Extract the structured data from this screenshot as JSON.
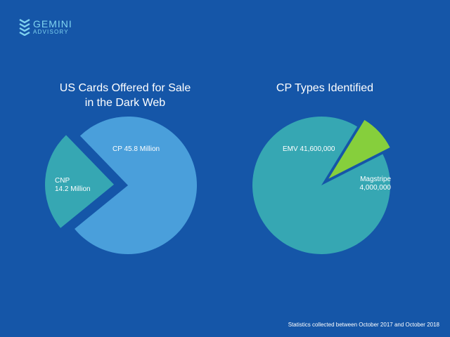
{
  "logo": {
    "line1": "GEMINI",
    "line2": "ADVISORY",
    "icon": "chevron-stack-icon",
    "color": "#7fd3f0"
  },
  "footnote": "Statistics collected between October 2017 and October 2018",
  "colors": {
    "background": "#1556a8",
    "cp": "#4a9fdb",
    "cnp": "#36a7b3",
    "emv": "#36a7b3",
    "magstripe": "#86cf3c"
  },
  "chart_data": [
    {
      "type": "pie",
      "title_lines": [
        "US Cards Offered for Sale",
        "in the Dark Web"
      ],
      "slices": [
        {
          "label_lines": [
            "CP 45.8 Million"
          ],
          "value": 45.8,
          "color": "#4a9fdb",
          "exploded": false
        },
        {
          "label_lines": [
            "CNP",
            "14.2 Million"
          ],
          "value": 14.2,
          "color": "#36a7b3",
          "exploded": true
        }
      ]
    },
    {
      "type": "pie",
      "title_lines": [
        "CP Types Identified"
      ],
      "slices": [
        {
          "label_lines": [
            "EMV 41,600,000"
          ],
          "value": 41600000,
          "color": "#36a7b3",
          "exploded": false
        },
        {
          "label_lines": [
            "Magstripe",
            "4,000,000"
          ],
          "value": 4000000,
          "color": "#86cf3c",
          "exploded": true
        }
      ]
    }
  ]
}
